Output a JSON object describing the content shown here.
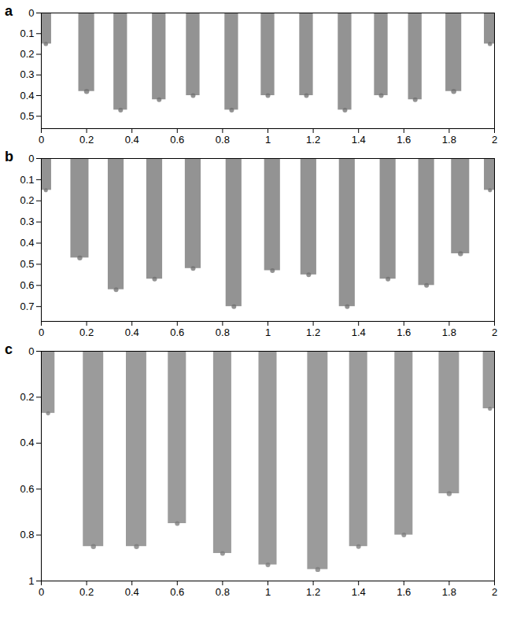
{
  "chart_data": [
    {
      "type": "fingers",
      "title": "a",
      "color": "#6f6f6f",
      "xlim": [
        0,
        2
      ],
      "xticks": [
        0,
        0.2,
        0.4,
        0.6,
        0.8,
        1,
        1.2,
        1.4,
        1.6,
        1.8,
        2
      ],
      "ylim": [
        0,
        0.56
      ],
      "yticks": [
        0,
        0.1,
        0.2,
        0.3,
        0.4,
        0.5
      ],
      "x": [
        0.02,
        0.2,
        0.35,
        0.52,
        0.67,
        0.84,
        1.0,
        1.17,
        1.34,
        1.5,
        1.65,
        1.82,
        1.98
      ],
      "depth": [
        0.15,
        0.38,
        0.47,
        0.42,
        0.4,
        0.47,
        0.4,
        0.4,
        0.47,
        0.4,
        0.42,
        0.38,
        0.15
      ],
      "width": [
        0.05,
        0.07,
        0.06,
        0.06,
        0.06,
        0.06,
        0.06,
        0.06,
        0.06,
        0.06,
        0.06,
        0.07,
        0.05
      ]
    },
    {
      "type": "fingers",
      "title": "b",
      "color": "#6f6f6f",
      "xlim": [
        0,
        2
      ],
      "xticks": [
        0,
        0.2,
        0.4,
        0.6,
        0.8,
        1,
        1.2,
        1.4,
        1.6,
        1.8,
        2
      ],
      "ylim": [
        0,
        0.77
      ],
      "yticks": [
        0,
        0.1,
        0.2,
        0.3,
        0.4,
        0.5,
        0.6,
        0.7
      ],
      "x": [
        0.02,
        0.17,
        0.33,
        0.5,
        0.67,
        0.85,
        1.02,
        1.18,
        1.35,
        1.53,
        1.7,
        1.85,
        1.98
      ],
      "depth": [
        0.15,
        0.47,
        0.62,
        0.57,
        0.52,
        0.7,
        0.53,
        0.55,
        0.7,
        0.57,
        0.6,
        0.45,
        0.15
      ],
      "width": [
        0.05,
        0.08,
        0.07,
        0.07,
        0.07,
        0.07,
        0.07,
        0.07,
        0.07,
        0.07,
        0.07,
        0.08,
        0.05
      ]
    },
    {
      "type": "fingers",
      "title": "c",
      "color": "#7a7a7a",
      "xlim": [
        0,
        2
      ],
      "xticks": [
        0,
        0.2,
        0.4,
        0.6,
        0.8,
        1,
        1.2,
        1.4,
        1.6,
        1.8,
        2
      ],
      "ylim": [
        0,
        1
      ],
      "yticks": [
        0,
        0.2,
        0.4,
        0.6,
        0.8,
        1
      ],
      "x": [
        0.03,
        0.23,
        0.42,
        0.6,
        0.8,
        1.0,
        1.22,
        1.4,
        1.6,
        1.8,
        1.98
      ],
      "depth": [
        0.27,
        0.85,
        0.85,
        0.75,
        0.88,
        0.93,
        0.95,
        0.85,
        0.8,
        0.62,
        0.25
      ],
      "width": [
        0.06,
        0.09,
        0.09,
        0.08,
        0.08,
        0.08,
        0.09,
        0.08,
        0.08,
        0.09,
        0.06
      ]
    }
  ]
}
